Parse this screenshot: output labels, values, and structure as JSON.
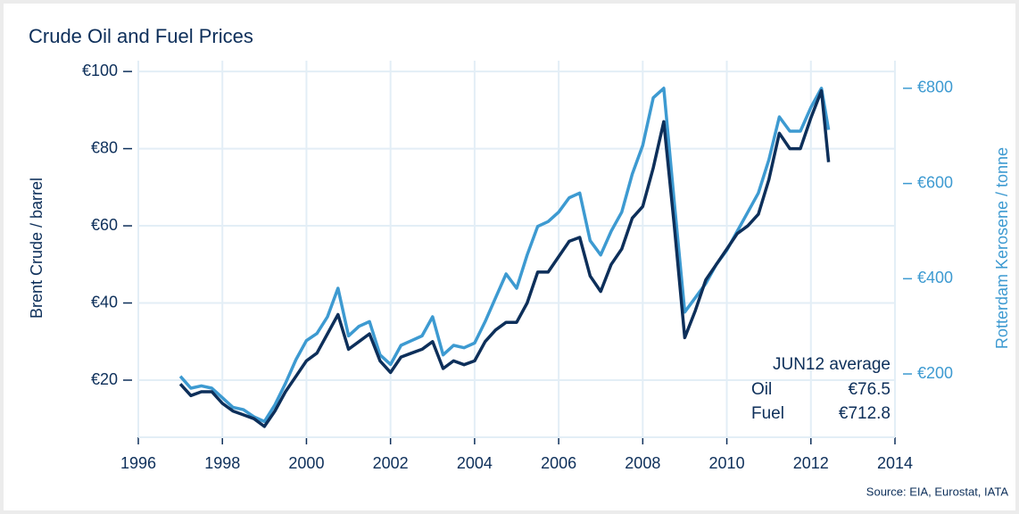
{
  "chart_data": {
    "type": "line",
    "title": "Crude Oil and Fuel Prices",
    "y_label": "Brent Crude / barrel",
    "y2_label": "Rotterdam Kerosene / tonne",
    "source": "Source: EIA, Eurostat, IATA",
    "annotation": {
      "title": "JUN12 average",
      "rows": [
        {
          "label": "Oil",
          "value_label": "€76.5"
        },
        {
          "label": "Fuel",
          "value_label": "€712.8"
        }
      ]
    },
    "x": [
      1997.0,
      1997.25,
      1997.5,
      1997.75,
      1998.0,
      1998.25,
      1998.5,
      1998.75,
      1999.0,
      1999.25,
      1999.5,
      1999.75,
      2000.0,
      2000.25,
      2000.5,
      2000.75,
      2001.0,
      2001.25,
      2001.5,
      2001.75,
      2002.0,
      2002.25,
      2002.5,
      2002.75,
      2003.0,
      2003.25,
      2003.5,
      2003.75,
      2004.0,
      2004.25,
      2004.5,
      2004.75,
      2005.0,
      2005.25,
      2005.5,
      2005.75,
      2006.0,
      2006.25,
      2006.5,
      2006.75,
      2007.0,
      2007.25,
      2007.5,
      2007.75,
      2008.0,
      2008.25,
      2008.5,
      2008.75,
      2009.0,
      2009.25,
      2009.5,
      2009.75,
      2010.0,
      2010.25,
      2010.5,
      2010.75,
      2011.0,
      2011.25,
      2011.5,
      2011.75,
      2012.0,
      2012.25,
      2012.42
    ],
    "series": [
      {
        "name": "Oil",
        "color": "#0d2f5a",
        "values": [
          19,
          16,
          17,
          17,
          14,
          12,
          11,
          10,
          8,
          12,
          17,
          21,
          25,
          27,
          32,
          37,
          28,
          30,
          32,
          25,
          22,
          26,
          27,
          28,
          30,
          23,
          25,
          24,
          25,
          30,
          33,
          35,
          35,
          40,
          48,
          48,
          52,
          56,
          57,
          47,
          43,
          50,
          54,
          62,
          65,
          75,
          87,
          60,
          31,
          38,
          46,
          50,
          54,
          58,
          60,
          63,
          72,
          84,
          80,
          80,
          88,
          95,
          76.5
        ]
      },
      {
        "name": "Fuel",
        "color": "#3d9ad1",
        "axis": "y2",
        "values": [
          195,
          170,
          175,
          170,
          150,
          130,
          125,
          110,
          100,
          135,
          180,
          230,
          270,
          285,
          320,
          380,
          280,
          300,
          310,
          240,
          220,
          260,
          270,
          280,
          320,
          240,
          260,
          255,
          265,
          310,
          360,
          410,
          380,
          450,
          510,
          520,
          540,
          570,
          580,
          480,
          450,
          500,
          540,
          620,
          680,
          780,
          800,
          560,
          330,
          360,
          390,
          430,
          460,
          500,
          540,
          580,
          650,
          740,
          710,
          710,
          760,
          800,
          712.8
        ]
      }
    ],
    "xlim": [
      1996,
      2014
    ],
    "xticks": [
      1996,
      1998,
      2000,
      2002,
      2004,
      2006,
      2008,
      2010,
      2012,
      2014
    ],
    "ylim": [
      5.2,
      102.8
    ],
    "yticks": [
      {
        "value": 20,
        "label": "€20"
      },
      {
        "value": 40,
        "label": "€40"
      },
      {
        "value": 60,
        "label": "€60"
      },
      {
        "value": 80,
        "label": "€80"
      },
      {
        "value": 100,
        "label": "€100"
      }
    ],
    "y2lim": [
      67,
      858
    ],
    "y2ticks": [
      {
        "value": 200,
        "label": "€200"
      },
      {
        "value": 400,
        "label": "€400"
      },
      {
        "value": 600,
        "label": "€600"
      },
      {
        "value": 800,
        "label": "€800"
      }
    ],
    "grid": true
  }
}
